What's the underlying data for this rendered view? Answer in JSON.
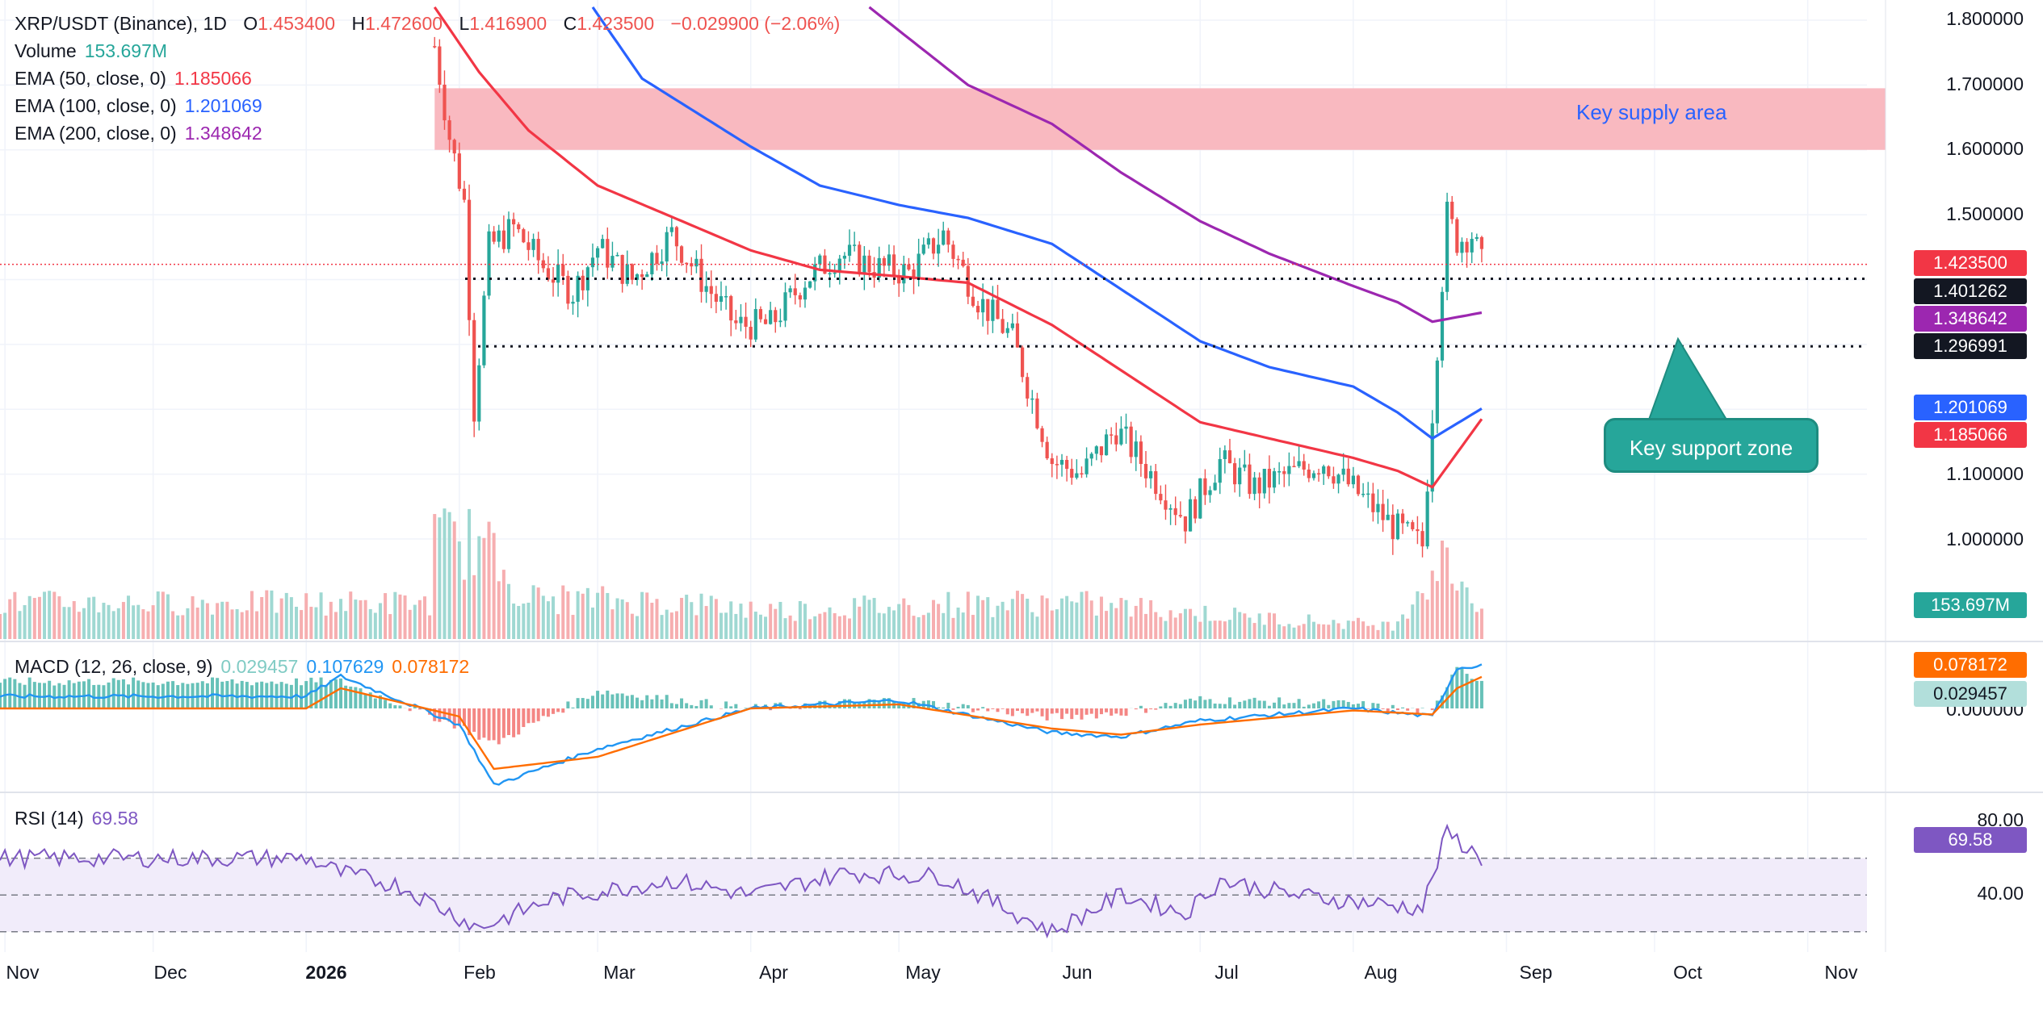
{
  "header": {
    "symbol": "XRP/USDT (Binance), 1D",
    "open_label": "O",
    "open": "1.453400",
    "high_label": "H",
    "high": "1.472600",
    "low_label": "L",
    "low": "1.416900",
    "close_label": "C",
    "close": "1.423500",
    "change": "−0.029900 (−2.06%)"
  },
  "indicators": {
    "volume": {
      "label": "Volume",
      "value": "153.697M",
      "color": "#26a69a"
    },
    "ema50": {
      "label": "EMA (50, close, 0)",
      "value": "1.185066",
      "color": "#f23645"
    },
    "ema100": {
      "label": "EMA (100, close, 0)",
      "value": "1.201069",
      "color": "#2962ff"
    },
    "ema200": {
      "label": "EMA (200, close, 0)",
      "value": "1.348642",
      "color": "#9c27b0"
    }
  },
  "macd": {
    "label": "MACD (12, 26, close, 9)",
    "histogram": "0.029457",
    "macd": "0.107629",
    "signal": "0.078172"
  },
  "rsi": {
    "label": "RSI (14)",
    "value": "69.58"
  },
  "price_axis": {
    "ticks": [
      "1.800000",
      "1.700000",
      "1.600000",
      "1.500000",
      "1.100000",
      "1.000000"
    ],
    "tags": {
      "last": "1.423500",
      "support_high": "1.401262",
      "ema200": "1.348642",
      "support_low": "1.296991",
      "ema100": "1.201069",
      "ema50": "1.185066",
      "volume": "153.697M"
    }
  },
  "macd_axis": {
    "ticks": [
      "0.000000"
    ],
    "tags": {
      "signal": "0.078172",
      "histogram": "0.029457"
    }
  },
  "rsi_axis": {
    "ticks": [
      "80.00",
      "40.00"
    ],
    "tag": "69.58"
  },
  "time_axis": [
    "Nov",
    "Dec",
    "2026",
    "Feb",
    "Mar",
    "Apr",
    "May",
    "Jun",
    "Jul",
    "Aug",
    "Sep",
    "Oct",
    "Nov"
  ],
  "annotations": {
    "supply": "Key supply area",
    "support": "Key support zone"
  },
  "colors": {
    "up": "#26a69a",
    "down": "#ef5350",
    "supply_zone": "#f9b5bd",
    "rsi_band": "#f1ecfa",
    "rsi_line": "#7e57c2",
    "macd_line": "#2196f3",
    "signal_line": "#ff6d00"
  },
  "chart_data": {
    "type": "line",
    "title": "XRP/USDT (Binance), 1D",
    "x_type": "date",
    "xlim": [
      "2025-10-31",
      "2026-11-13"
    ],
    "ylim": [
      0.92,
      1.82
    ],
    "series": [
      {
        "name": "EMA (50, close, 0)",
        "x": [
          "2026-01-27",
          "2026-02-05",
          "2026-02-15",
          "2026-03-01",
          "2026-03-15",
          "2026-04-01",
          "2026-04-15",
          "2026-05-01",
          "2026-05-15",
          "2026-06-01",
          "2026-06-15",
          "2026-07-01",
          "2026-07-15",
          "2026-08-01",
          "2026-08-10",
          "2026-08-17",
          "2026-08-27"
        ],
        "values": [
          1.82,
          1.72,
          1.63,
          1.545,
          1.5,
          1.445,
          1.415,
          1.405,
          1.395,
          1.33,
          1.26,
          1.18,
          1.155,
          1.125,
          1.105,
          1.08,
          1.185
        ]
      },
      {
        "name": "EMA (100, close, 0)",
        "x": [
          "2026-02-28",
          "2026-03-10",
          "2026-04-01",
          "2026-04-15",
          "2026-05-01",
          "2026-05-15",
          "2026-06-01",
          "2026-06-15",
          "2026-07-01",
          "2026-07-15",
          "2026-08-01",
          "2026-08-10",
          "2026-08-17",
          "2026-08-27"
        ],
        "values": [
          1.82,
          1.71,
          1.605,
          1.545,
          1.515,
          1.495,
          1.455,
          1.385,
          1.305,
          1.265,
          1.235,
          1.195,
          1.155,
          1.201
        ]
      },
      {
        "name": "EMA (200, close, 0)",
        "x": [
          "2026-04-25",
          "2026-05-15",
          "2026-06-01",
          "2026-06-15",
          "2026-07-01",
          "2026-07-15",
          "2026-08-01",
          "2026-08-10",
          "2026-08-17",
          "2026-08-27"
        ],
        "values": [
          1.82,
          1.7,
          1.64,
          1.565,
          1.49,
          1.44,
          1.39,
          1.365,
          1.335,
          1.349
        ]
      },
      {
        "name": "Close",
        "x": [
          "2026-01-27",
          "2026-01-30",
          "2026-02-02",
          "2026-02-04",
          "2026-02-07",
          "2026-02-12",
          "2026-02-18",
          "2026-02-24",
          "2026-03-01",
          "2026-03-08",
          "2026-03-16",
          "2026-03-22",
          "2026-03-29",
          "2026-04-05",
          "2026-04-12",
          "2026-04-19",
          "2026-04-26",
          "2026-05-03",
          "2026-05-10",
          "2026-05-17",
          "2026-05-24",
          "2026-06-01",
          "2026-06-07",
          "2026-06-14",
          "2026-06-21",
          "2026-06-28",
          "2026-07-05",
          "2026-07-12",
          "2026-07-19",
          "2026-07-26",
          "2026-08-02",
          "2026-08-09",
          "2026-08-15",
          "2026-08-18",
          "2026-08-20",
          "2026-08-22",
          "2026-08-25",
          "2026-08-27"
        ],
        "values": [
          1.76,
          1.62,
          1.52,
          1.2,
          1.45,
          1.48,
          1.42,
          1.38,
          1.45,
          1.4,
          1.47,
          1.4,
          1.33,
          1.33,
          1.4,
          1.44,
          1.42,
          1.41,
          1.47,
          1.37,
          1.31,
          1.12,
          1.1,
          1.17,
          1.1,
          1.03,
          1.12,
          1.08,
          1.1,
          1.12,
          1.07,
          1.02,
          0.99,
          1.3,
          1.5,
          1.46,
          1.47,
          1.4235
        ]
      }
    ],
    "horizontal_lines": [
      {
        "value": 1.401262,
        "style": "dotted"
      },
      {
        "value": 1.296991,
        "style": "dotted"
      }
    ],
    "zones": [
      {
        "label": "Key supply area",
        "from": 1.6,
        "to": 1.695
      }
    ],
    "volume_series": {
      "x": [
        "2026-02-05",
        "2026-02-15",
        "2026-03-16",
        "2026-04-05",
        "2026-05-10",
        "2026-06-01",
        "2026-06-14",
        "2026-07-12",
        "2026-08-09",
        "2026-08-17",
        "2026-08-20",
        "2026-08-27"
      ],
      "values": [
        1000,
        420,
        380,
        300,
        360,
        380,
        340,
        220,
        140,
        700,
        800,
        330
      ]
    },
    "rsi_series": {
      "x": [
        "2026-01-01",
        "2026-01-08",
        "2026-01-20",
        "2026-02-05",
        "2026-02-20",
        "2026-03-16",
        "2026-04-01",
        "2026-04-20",
        "2026-05-10",
        "2026-06-01",
        "2026-06-15",
        "2026-06-28",
        "2026-07-05",
        "2026-07-20",
        "2026-08-10",
        "2026-08-15",
        "2026-08-20",
        "2026-08-27"
      ],
      "values": [
        70,
        62,
        55,
        32,
        48,
        58,
        50,
        62,
        60,
        30,
        50,
        40,
        58,
        50,
        44,
        43,
        84,
        69.58
      ]
    },
    "rsi_ylim": [
      25,
      90
    ],
    "macd_series": {
      "x": [
        "2026-01-01",
        "2026-01-08",
        "2026-02-01",
        "2026-02-08",
        "2026-03-01",
        "2026-04-01",
        "2026-05-01",
        "2026-06-01",
        "2026-06-15",
        "2026-07-01",
        "2026-08-01",
        "2026-08-17",
        "2026-08-22",
        "2026-08-27"
      ],
      "macd": [
        0.03,
        0.08,
        -0.04,
        -0.19,
        -0.1,
        0.0,
        0.02,
        -0.06,
        -0.07,
        -0.03,
        0.0,
        -0.02,
        0.1,
        0.107629
      ],
      "signal": [
        0.0,
        0.05,
        -0.02,
        -0.15,
        -0.12,
        0.0,
        0.01,
        -0.05,
        -0.065,
        -0.04,
        -0.005,
        -0.015,
        0.05,
        0.078172
      ]
    }
  }
}
